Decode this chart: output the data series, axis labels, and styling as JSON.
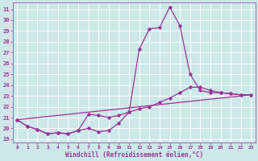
{
  "xlabel": "Windchill (Refroidissement éolien,°C)",
  "bg_color": "#cce8e8",
  "grid_color": "#aacccc",
  "line_color": "#993399",
  "line_width": 0.9,
  "marker": "D",
  "marker_size": 1.8,
  "yticks": [
    19,
    20,
    21,
    22,
    23,
    24,
    25,
    26,
    27,
    28,
    29,
    30,
    31
  ],
  "xticks": [
    0,
    1,
    2,
    3,
    4,
    5,
    6,
    7,
    8,
    9,
    10,
    11,
    12,
    13,
    14,
    15,
    16,
    17,
    18,
    19,
    20,
    21,
    22,
    23
  ],
  "xlim": [
    -0.4,
    23.4
  ],
  "ylim": [
    18.7,
    31.6
  ],
  "series1_x": [
    0,
    1,
    2,
    3,
    4,
    5,
    6,
    7,
    8,
    9,
    10,
    11,
    12,
    13,
    14,
    15,
    16,
    17,
    18,
    19,
    20,
    21,
    22,
    23
  ],
  "series1_y": [
    20.8,
    20.2,
    19.9,
    19.5,
    19.6,
    19.5,
    19.8,
    20.0,
    19.7,
    19.8,
    20.5,
    21.5,
    27.3,
    29.2,
    29.3,
    31.2,
    29.5,
    25.0,
    23.5,
    23.3,
    23.3,
    23.2,
    23.1,
    23.1
  ],
  "series2_x": [
    0,
    1,
    2,
    3,
    4,
    5,
    6,
    7,
    8,
    9,
    10,
    11,
    12,
    13,
    14,
    15,
    16,
    17,
    18,
    19,
    20,
    21,
    22,
    23
  ],
  "series2_y": [
    20.8,
    20.2,
    19.9,
    19.5,
    19.6,
    19.5,
    19.8,
    21.3,
    21.2,
    21.0,
    21.2,
    21.5,
    21.8,
    22.0,
    22.4,
    22.8,
    23.3,
    23.8,
    23.8,
    23.5,
    23.3,
    23.2,
    23.1,
    23.1
  ],
  "series3_x": [
    0,
    23
  ],
  "series3_y": [
    20.8,
    23.1
  ]
}
